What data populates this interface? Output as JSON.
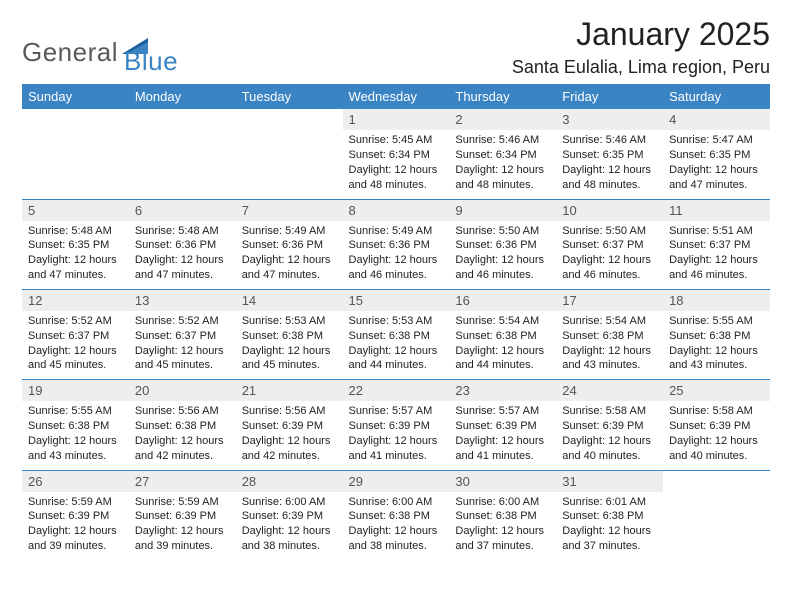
{
  "brand": {
    "part1": "General",
    "part2": "Blue",
    "color1": "#5a5a5a",
    "color2": "#3a84c4"
  },
  "title": "January 2025",
  "location": "Santa Eulalia, Lima region, Peru",
  "colors": {
    "header_bg": "#3a84c4",
    "header_text": "#ffffff",
    "daynum_bg": "#eeeeee",
    "daynum_text": "#555555",
    "body_text": "#222222",
    "rule": "#3a84c4",
    "page_bg": "#ffffff"
  },
  "fonts": {
    "title_size": 32,
    "location_size": 18,
    "dayhead_size": 13,
    "daynum_size": 13,
    "body_size": 11
  },
  "day_headers": [
    "Sunday",
    "Monday",
    "Tuesday",
    "Wednesday",
    "Thursday",
    "Friday",
    "Saturday"
  ],
  "weeks": [
    [
      null,
      null,
      null,
      {
        "n": "1",
        "sr": "5:45 AM",
        "ss": "6:34 PM",
        "dl": "12 hours and 48 minutes."
      },
      {
        "n": "2",
        "sr": "5:46 AM",
        "ss": "6:34 PM",
        "dl": "12 hours and 48 minutes."
      },
      {
        "n": "3",
        "sr": "5:46 AM",
        "ss": "6:35 PM",
        "dl": "12 hours and 48 minutes."
      },
      {
        "n": "4",
        "sr": "5:47 AM",
        "ss": "6:35 PM",
        "dl": "12 hours and 47 minutes."
      }
    ],
    [
      {
        "n": "5",
        "sr": "5:48 AM",
        "ss": "6:35 PM",
        "dl": "12 hours and 47 minutes."
      },
      {
        "n": "6",
        "sr": "5:48 AM",
        "ss": "6:36 PM",
        "dl": "12 hours and 47 minutes."
      },
      {
        "n": "7",
        "sr": "5:49 AM",
        "ss": "6:36 PM",
        "dl": "12 hours and 47 minutes."
      },
      {
        "n": "8",
        "sr": "5:49 AM",
        "ss": "6:36 PM",
        "dl": "12 hours and 46 minutes."
      },
      {
        "n": "9",
        "sr": "5:50 AM",
        "ss": "6:36 PM",
        "dl": "12 hours and 46 minutes."
      },
      {
        "n": "10",
        "sr": "5:50 AM",
        "ss": "6:37 PM",
        "dl": "12 hours and 46 minutes."
      },
      {
        "n": "11",
        "sr": "5:51 AM",
        "ss": "6:37 PM",
        "dl": "12 hours and 46 minutes."
      }
    ],
    [
      {
        "n": "12",
        "sr": "5:52 AM",
        "ss": "6:37 PM",
        "dl": "12 hours and 45 minutes."
      },
      {
        "n": "13",
        "sr": "5:52 AM",
        "ss": "6:37 PM",
        "dl": "12 hours and 45 minutes."
      },
      {
        "n": "14",
        "sr": "5:53 AM",
        "ss": "6:38 PM",
        "dl": "12 hours and 45 minutes."
      },
      {
        "n": "15",
        "sr": "5:53 AM",
        "ss": "6:38 PM",
        "dl": "12 hours and 44 minutes."
      },
      {
        "n": "16",
        "sr": "5:54 AM",
        "ss": "6:38 PM",
        "dl": "12 hours and 44 minutes."
      },
      {
        "n": "17",
        "sr": "5:54 AM",
        "ss": "6:38 PM",
        "dl": "12 hours and 43 minutes."
      },
      {
        "n": "18",
        "sr": "5:55 AM",
        "ss": "6:38 PM",
        "dl": "12 hours and 43 minutes."
      }
    ],
    [
      {
        "n": "19",
        "sr": "5:55 AM",
        "ss": "6:38 PM",
        "dl": "12 hours and 43 minutes."
      },
      {
        "n": "20",
        "sr": "5:56 AM",
        "ss": "6:38 PM",
        "dl": "12 hours and 42 minutes."
      },
      {
        "n": "21",
        "sr": "5:56 AM",
        "ss": "6:39 PM",
        "dl": "12 hours and 42 minutes."
      },
      {
        "n": "22",
        "sr": "5:57 AM",
        "ss": "6:39 PM",
        "dl": "12 hours and 41 minutes."
      },
      {
        "n": "23",
        "sr": "5:57 AM",
        "ss": "6:39 PM",
        "dl": "12 hours and 41 minutes."
      },
      {
        "n": "24",
        "sr": "5:58 AM",
        "ss": "6:39 PM",
        "dl": "12 hours and 40 minutes."
      },
      {
        "n": "25",
        "sr": "5:58 AM",
        "ss": "6:39 PM",
        "dl": "12 hours and 40 minutes."
      }
    ],
    [
      {
        "n": "26",
        "sr": "5:59 AM",
        "ss": "6:39 PM",
        "dl": "12 hours and 39 minutes."
      },
      {
        "n": "27",
        "sr": "5:59 AM",
        "ss": "6:39 PM",
        "dl": "12 hours and 39 minutes."
      },
      {
        "n": "28",
        "sr": "6:00 AM",
        "ss": "6:39 PM",
        "dl": "12 hours and 38 minutes."
      },
      {
        "n": "29",
        "sr": "6:00 AM",
        "ss": "6:38 PM",
        "dl": "12 hours and 38 minutes."
      },
      {
        "n": "30",
        "sr": "6:00 AM",
        "ss": "6:38 PM",
        "dl": "12 hours and 37 minutes."
      },
      {
        "n": "31",
        "sr": "6:01 AM",
        "ss": "6:38 PM",
        "dl": "12 hours and 37 minutes."
      },
      null
    ]
  ],
  "labels": {
    "sunrise": "Sunrise:",
    "sunset": "Sunset:",
    "daylight": "Daylight:"
  }
}
